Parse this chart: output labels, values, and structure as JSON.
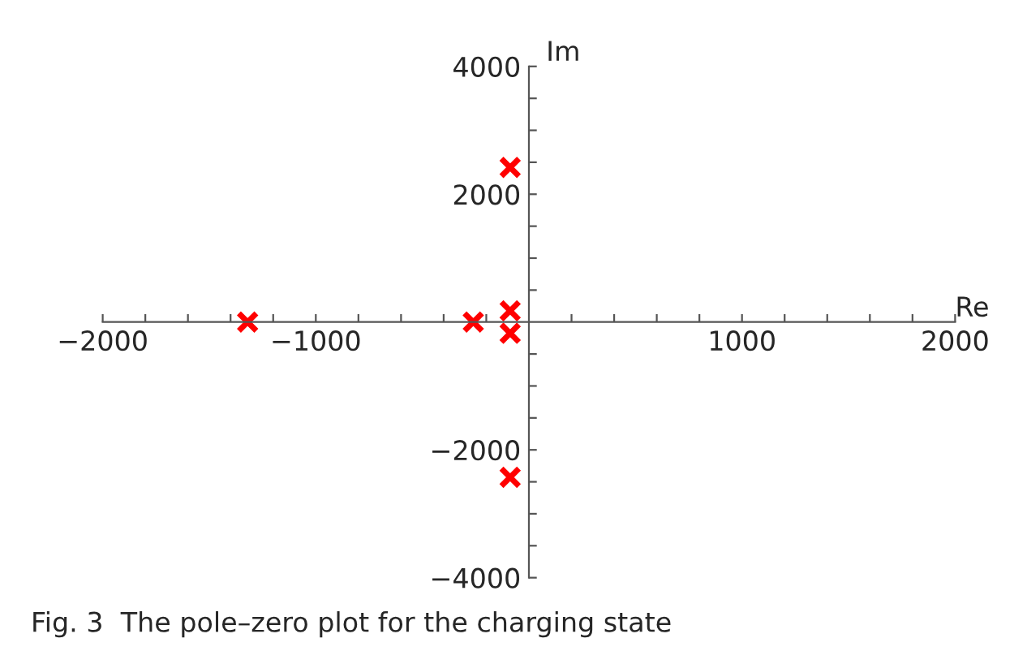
{
  "chart_data": {
    "type": "scatter",
    "xlabel": "Re",
    "ylabel": "Im",
    "annotations": [
      "Fig. 3  The pole–zero plot for the charging state"
    ],
    "x": [
      -1320,
      -261,
      -88,
      -88,
      -88,
      -88
    ],
    "series": [
      {
        "color": "#ff0000",
        "values": [
          0,
          0,
          176,
          -176,
          2420,
          -2430
        ]
      }
    ],
    "marker": "cross",
    "xlim": [
      -2000,
      2000
    ],
    "ylim": [
      -4000,
      4000
    ],
    "xticks": [
      -2000,
      {
        "value": -1800,
        "label": null
      },
      {
        "value": -1600,
        "label": null
      },
      {
        "value": -1400,
        "label": null
      },
      {
        "value": -1200,
        "label": null
      },
      -1000,
      {
        "value": -800,
        "label": null
      },
      {
        "value": -600,
        "label": null
      },
      {
        "value": -400,
        "label": null
      },
      {
        "value": -200,
        "label": null
      },
      {
        "value": 200,
        "label": null
      },
      {
        "value": 400,
        "label": null
      },
      {
        "value": 600,
        "label": null
      },
      {
        "value": 800,
        "label": null
      },
      1000,
      {
        "value": 1200,
        "label": null
      },
      {
        "value": 1400,
        "label": null
      },
      {
        "value": 1600,
        "label": null
      },
      {
        "value": 1800,
        "label": null
      },
      2000
    ],
    "yticks": [
      -4000,
      {
        "value": -3500,
        "label": null
      },
      {
        "value": -3000,
        "label": null
      },
      {
        "value": -2500,
        "label": null
      },
      -2000,
      {
        "value": -1500,
        "label": null
      },
      {
        "value": -1000,
        "label": null
      },
      {
        "value": -500,
        "label": null
      },
      {
        "value": 500,
        "label": null
      },
      {
        "value": 1000,
        "label": null
      },
      {
        "value": 1500,
        "label": null
      },
      2000,
      {
        "value": 2500,
        "label": null
      },
      {
        "value": 3000,
        "label": null
      },
      {
        "value": 3500,
        "label": null
      },
      4000
    ],
    "grid": false,
    "legend": false
  }
}
